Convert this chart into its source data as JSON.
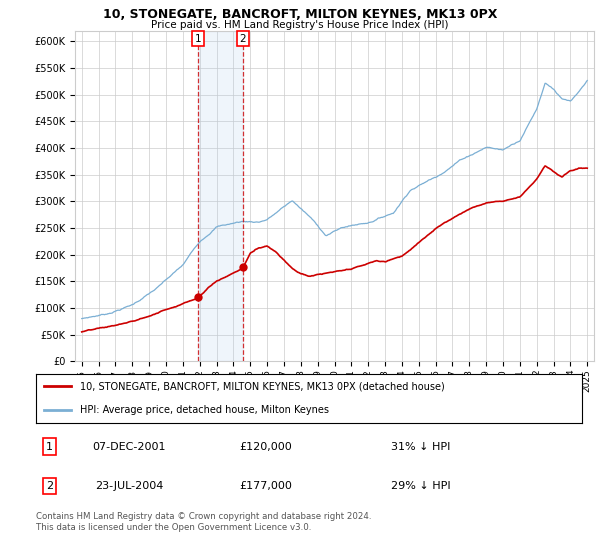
{
  "title": "10, STONEGATE, BANCROFT, MILTON KEYNES, MK13 0PX",
  "subtitle": "Price paid vs. HM Land Registry's House Price Index (HPI)",
  "ylabel_ticks": [
    "£0",
    "£50K",
    "£100K",
    "£150K",
    "£200K",
    "£250K",
    "£300K",
    "£350K",
    "£400K",
    "£450K",
    "£500K",
    "£550K",
    "£600K"
  ],
  "ytick_values": [
    0,
    50000,
    100000,
    150000,
    200000,
    250000,
    300000,
    350000,
    400000,
    450000,
    500000,
    550000,
    600000
  ],
  "ylim": [
    0,
    620000
  ],
  "hpi_color": "#7bafd4",
  "price_color": "#cc0000",
  "sale1_date": 2001.92,
  "sale1_price": 120000,
  "sale2_date": 2004.55,
  "sale2_price": 177000,
  "legend_label1": "10, STONEGATE, BANCROFT, MILTON KEYNES, MK13 0PX (detached house)",
  "legend_label2": "HPI: Average price, detached house, Milton Keynes",
  "table_row1": [
    "1",
    "07-DEC-2001",
    "£120,000",
    "31% ↓ HPI"
  ],
  "table_row2": [
    "2",
    "23-JUL-2004",
    "£177,000",
    "29% ↓ HPI"
  ],
  "footer": "Contains HM Land Registry data © Crown copyright and database right 2024.\nThis data is licensed under the Open Government Licence v3.0.",
  "grid_color": "#cccccc",
  "shade_color": "#ddeeff"
}
